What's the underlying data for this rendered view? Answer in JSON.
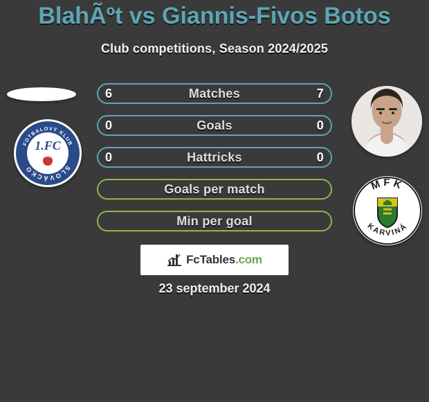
{
  "title": "BlahÃºt vs Giannis-Fivos Botos",
  "subtitle": "Club competitions, Season 2024/2025",
  "date": "23 september 2024",
  "logo_text_main": "FcTables",
  "logo_text_suffix": ".com",
  "rows": [
    {
      "label": "Matches",
      "left": "6",
      "right": "7",
      "color": "#5aa7b5"
    },
    {
      "label": "Goals",
      "left": "0",
      "right": "0",
      "color": "#5aa7b5"
    },
    {
      "label": "Hattricks",
      "left": "0",
      "right": "0",
      "color": "#5aa7b5"
    },
    {
      "label": "Goals per match",
      "left": "",
      "right": "",
      "color": "#8fb84a"
    },
    {
      "label": "Min per goal",
      "left": "",
      "right": "",
      "color": "#8fb84a"
    }
  ],
  "player1": {
    "name": "BlahÃºt"
  },
  "player2": {
    "name": "Giannis-Fivos Botos"
  },
  "club1": {
    "name": "1. FC Slovácko",
    "ring_color": "#2a4a8a",
    "inner_color": "#ffffff",
    "text": "SLOVÁCKO",
    "text_top": "FOTBALOVÝ KLUB",
    "ball_color": "#cc3333"
  },
  "club2": {
    "name": "MFK Karviná",
    "ring_color": "#ffffff",
    "text_top": "MFK",
    "text_bottom": "KARVINÁ",
    "shield_stroke": "#222",
    "shield_green": "#2e7a2e",
    "shield_yellow": "#d6c21e"
  }
}
